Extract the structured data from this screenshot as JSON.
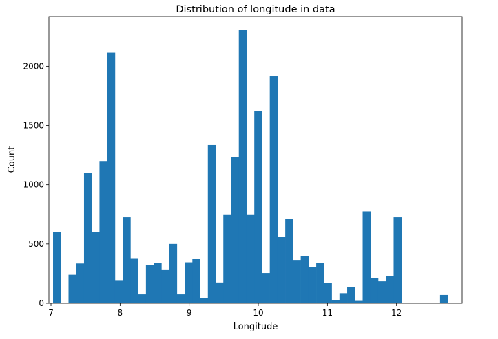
{
  "chart_data": {
    "type": "bar",
    "title": "Distribution of longitude in data",
    "xlabel": "Longitude",
    "ylabel": "Count",
    "xlim": [
      6.97,
      12.95
    ],
    "ylim": [
      0,
      2420
    ],
    "x_ticks": [
      7,
      8,
      9,
      10,
      11,
      12
    ],
    "x_tick_labels": [
      "7",
      "8",
      "9",
      "10",
      "11",
      "12"
    ],
    "y_ticks": [
      0,
      500,
      1000,
      1500,
      2000
    ],
    "y_tick_labels": [
      "0",
      "500",
      "1000",
      "1500",
      "2000"
    ],
    "grid": false,
    "bar_color": "#1f77b4",
    "bin_edges": [
      7.03,
      7.142,
      7.254,
      7.366,
      7.478,
      7.59,
      7.702,
      7.814,
      7.926,
      8.038,
      8.15,
      8.262,
      8.374,
      8.486,
      8.598,
      8.71,
      8.822,
      8.934,
      9.046,
      9.158,
      9.27,
      9.382,
      9.494,
      9.606,
      9.718,
      9.83,
      9.942,
      10.054,
      10.166,
      10.278,
      10.39,
      10.502,
      10.614,
      10.726,
      10.838,
      10.95,
      11.062,
      11.174,
      11.286,
      11.398,
      11.51,
      11.622,
      11.734,
      11.846,
      11.958,
      12.07,
      12.182,
      12.294,
      12.406,
      12.518,
      12.63,
      12.742
    ],
    "values": [
      600,
      5,
      240,
      335,
      1100,
      600,
      1200,
      2115,
      195,
      725,
      380,
      75,
      325,
      340,
      285,
      500,
      75,
      345,
      375,
      45,
      1335,
      175,
      750,
      1235,
      2305,
      750,
      1620,
      255,
      1915,
      560,
      710,
      365,
      400,
      305,
      340,
      170,
      25,
      85,
      135,
      20,
      775,
      210,
      185,
      230,
      725,
      5,
      0,
      0,
      0,
      0,
      70
    ]
  }
}
